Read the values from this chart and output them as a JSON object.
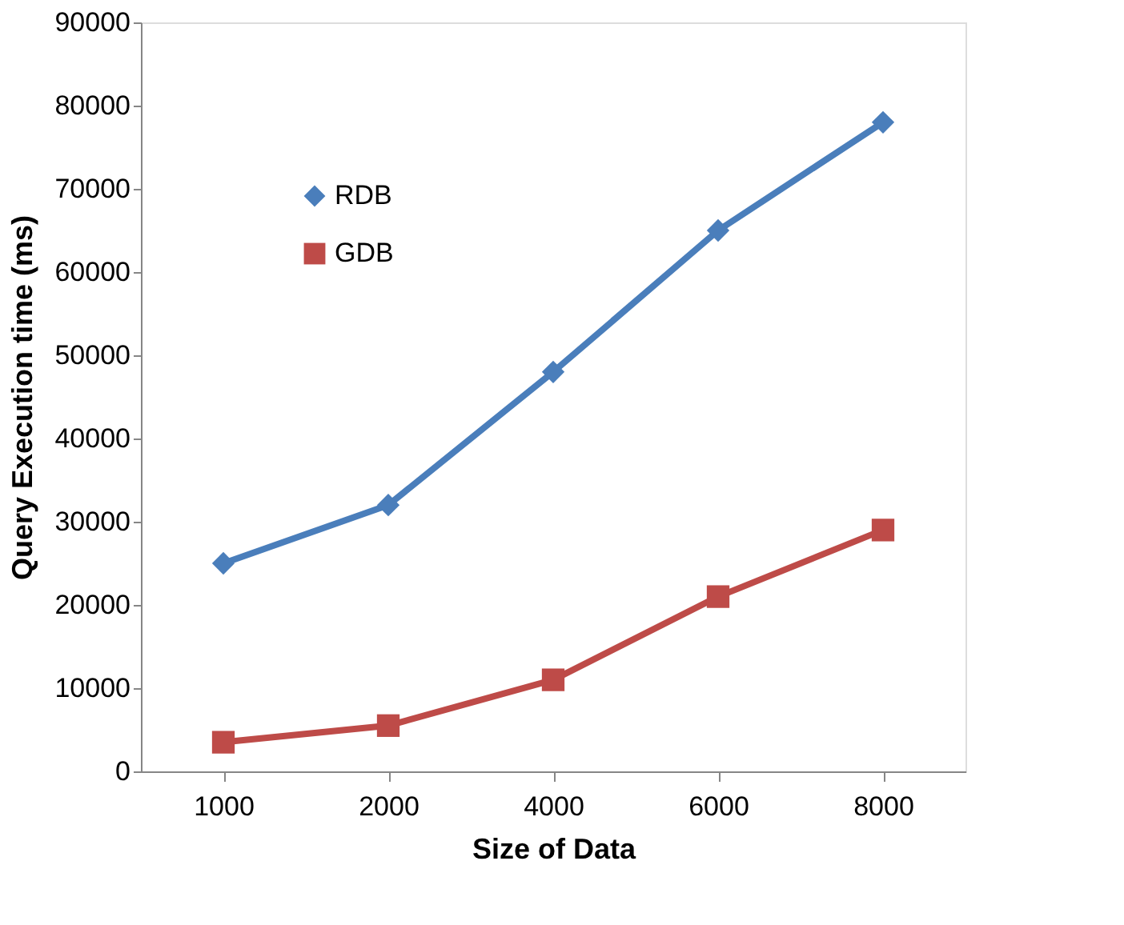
{
  "chart_data": {
    "type": "line",
    "xlabel": "Size of Data",
    "ylabel": "Query Execution time (ms)",
    "categories": [
      "1000",
      "2000",
      "4000",
      "6000",
      "8000"
    ],
    "series": [
      {
        "name": "RDB",
        "color": "#4a7ebb",
        "marker": "diamond",
        "values": [
          25000,
          32000,
          48000,
          65000,
          78000
        ]
      },
      {
        "name": "GDB",
        "color": "#be4b48",
        "marker": "square",
        "values": [
          3500,
          5500,
          11000,
          21000,
          29000
        ]
      }
    ],
    "ylim": [
      0,
      90000
    ],
    "yticks": [
      0,
      10000,
      20000,
      30000,
      40000,
      50000,
      60000,
      70000,
      80000,
      90000
    ],
    "grid": false,
    "legend": "top left",
    "line_style": "solid"
  }
}
